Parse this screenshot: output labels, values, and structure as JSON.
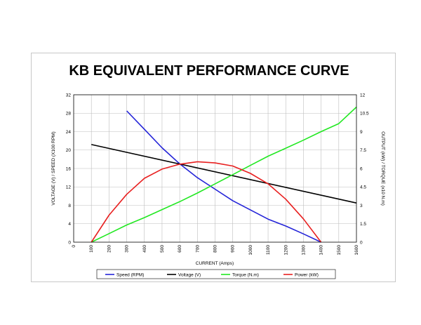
{
  "chart_data": {
    "type": "line",
    "title": "KB EQUIVALENT PERFORMANCE CURVE",
    "xlabel": "CURRENT (Amps)",
    "ylabel_left": "VOLTAGE (V) / SPEED (X100 RPM)",
    "ylabel_right": "OUTPUT (kW) / TORQUE (x10 N.m)",
    "xlim": [
      0,
      1600
    ],
    "ylim_left": [
      0,
      32
    ],
    "ylim_right": [
      0,
      12
    ],
    "x_ticks": [
      "0",
      "100",
      "200",
      "300",
      "400",
      "500",
      "600",
      "700",
      "800",
      "900",
      "1000",
      "1100",
      "1200",
      "1300",
      "1400",
      "1500",
      "1600"
    ],
    "y_ticks_left": [
      "0",
      "4",
      "8",
      "12",
      "16",
      "20",
      "24",
      "28",
      "32"
    ],
    "y_ticks_right": [
      "0",
      "1.5",
      "3",
      "4.5",
      "6",
      "7.5",
      "9",
      "10.5",
      "12"
    ],
    "grid": true,
    "legend_position": "bottom",
    "series": [
      {
        "name": "Speed (RPM)",
        "color": "#2424d8",
        "axis": "left",
        "x": [
          300,
          400,
          500,
          600,
          700,
          800,
          900,
          1000,
          1100,
          1200,
          1300,
          1400
        ],
        "y": [
          28.5,
          24.5,
          20.5,
          17.0,
          14.0,
          11.5,
          9.0,
          7.0,
          5.0,
          3.5,
          1.8,
          0.0
        ]
      },
      {
        "name": "Voltage (V)",
        "color": "#000000",
        "axis": "left",
        "x": [
          100,
          1600
        ],
        "y": [
          21.2,
          8.5
        ]
      },
      {
        "name": "Torque (N.m)",
        "color": "#22e822",
        "axis": "right",
        "x": [
          100,
          200,
          300,
          400,
          500,
          600,
          700,
          800,
          900,
          1000,
          1100,
          1200,
          1300,
          1400,
          1500,
          1600
        ],
        "y": [
          0.0,
          0.7,
          1.4,
          2.0,
          2.65,
          3.3,
          4.0,
          4.75,
          5.5,
          6.25,
          7.0,
          7.65,
          8.3,
          9.0,
          9.65,
          11.0
        ]
      },
      {
        "name": "Power (kW)",
        "color": "#e82020",
        "axis": "right",
        "x": [
          100,
          200,
          300,
          400,
          500,
          600,
          700,
          800,
          900,
          1000,
          1100,
          1200,
          1300,
          1400
        ],
        "y": [
          0.0,
          2.2,
          3.9,
          5.2,
          5.95,
          6.35,
          6.55,
          6.45,
          6.2,
          5.6,
          4.75,
          3.5,
          1.9,
          0.0
        ]
      }
    ]
  }
}
